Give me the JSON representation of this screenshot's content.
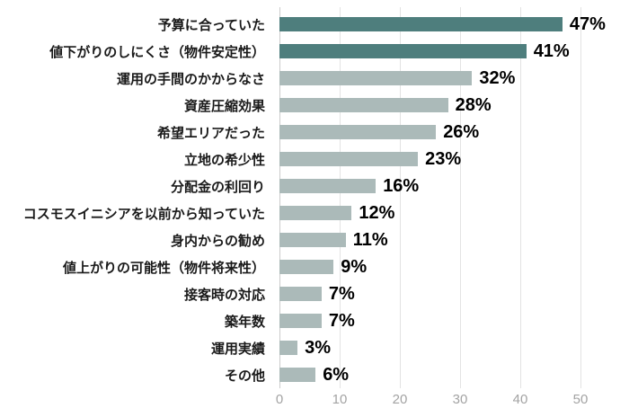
{
  "chart_data": {
    "type": "bar",
    "orientation": "horizontal",
    "title": "",
    "xlabel": "",
    "ylabel": "",
    "categories": [
      "予算に合っていた",
      "値下がりのしにくさ（物件安定性）",
      "運用の手間のかからなさ",
      "資産圧縮効果",
      "希望エリアだった",
      "立地の希少性",
      "分配金の利回り",
      "コスモスイニシアを以前から知っていた",
      "身内からの勧め",
      "値上がりの可能性（物件将来性）",
      "接客時の対応",
      "築年数",
      "運用実績",
      "その他"
    ],
    "values": [
      47,
      41,
      32,
      28,
      26,
      23,
      16,
      12,
      11,
      9,
      7,
      7,
      3,
      6
    ],
    "value_labels": [
      "47%",
      "41%",
      "32%",
      "28%",
      "26%",
      "23%",
      "16%",
      "12%",
      "11%",
      "9%",
      "7%",
      "7%",
      "3%",
      "6%"
    ],
    "highlight_count": 2,
    "xlim": [
      0,
      50
    ],
    "x_ticks": [
      0,
      10,
      20,
      30,
      40,
      50
    ],
    "grid": true,
    "legend": "none",
    "colors": {
      "bar_highlight": "#4e7e7d",
      "bar_normal": "#abbab9",
      "gridline": "#e3e3e3",
      "zero_axis": "#cccccc",
      "tick_label": "#a3a3a3",
      "value_label": "#000000",
      "category_label": "#1a1a1a"
    }
  }
}
